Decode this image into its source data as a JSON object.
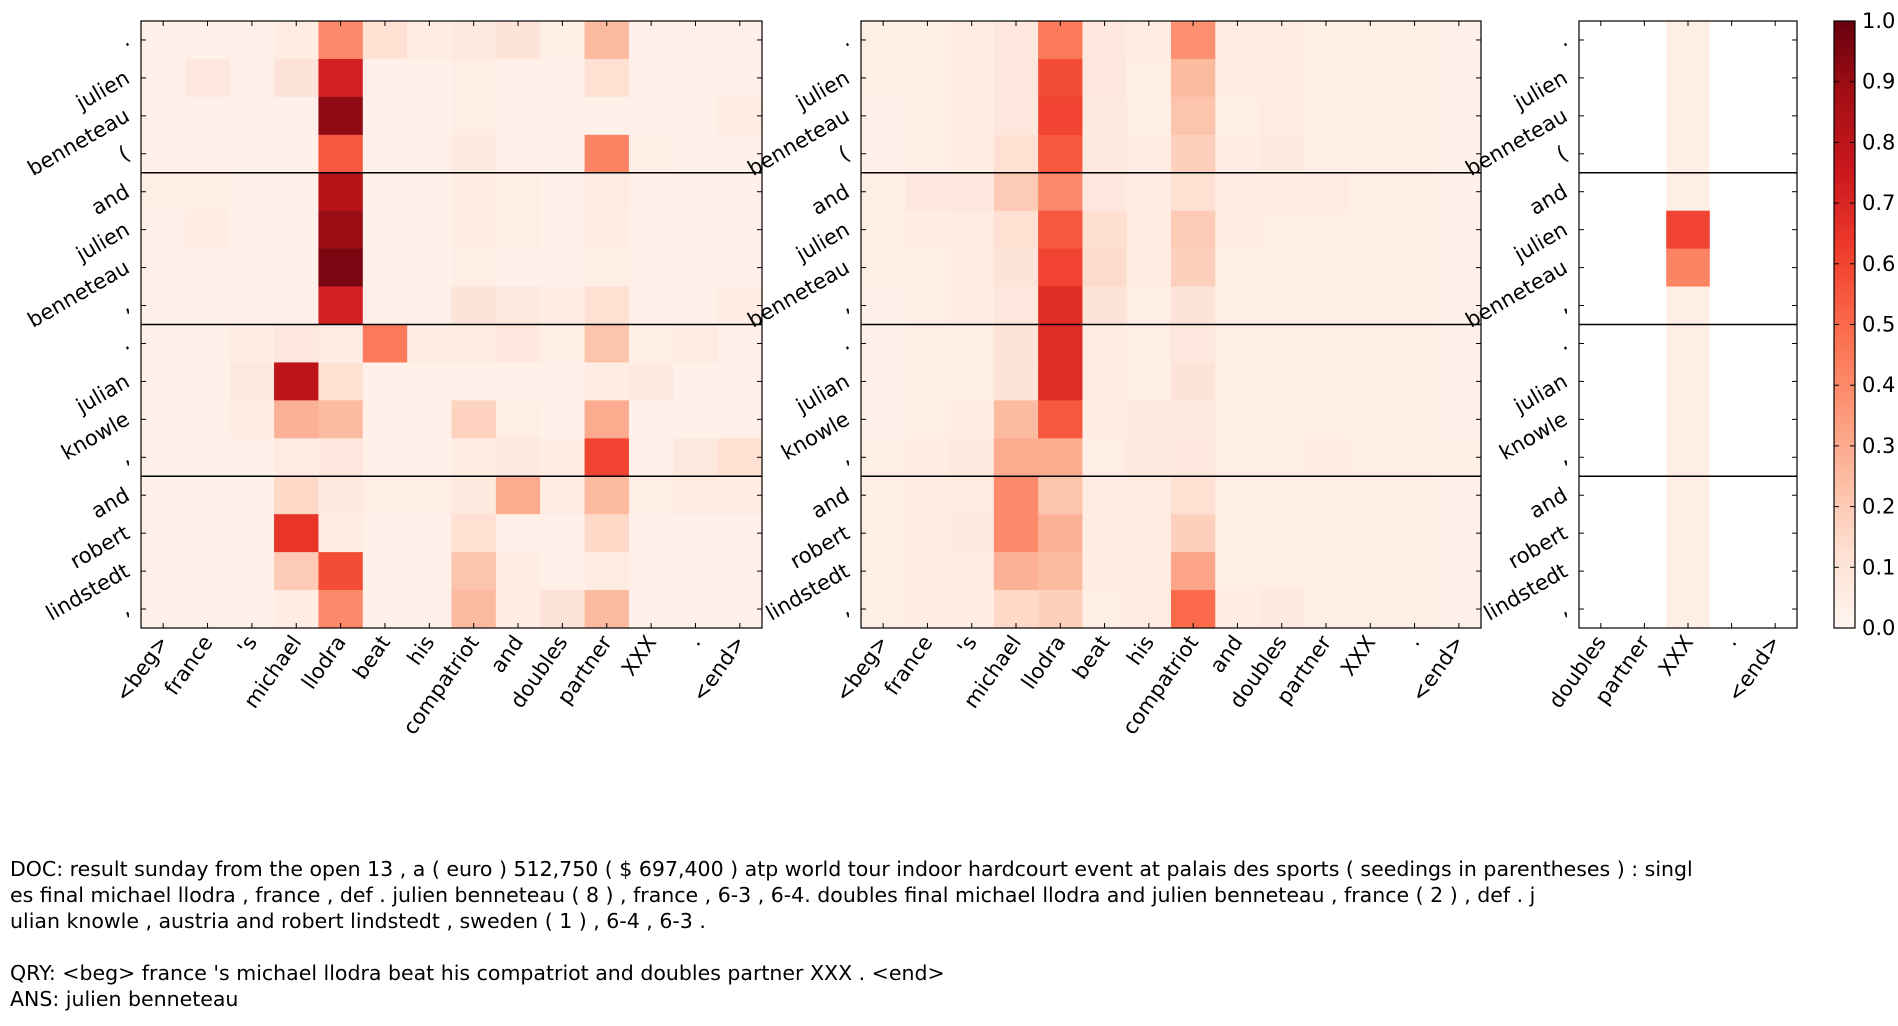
{
  "chart_data": {
    "type": "heatmap",
    "colormap": "Reds",
    "color_range": [
      0.0,
      1.0
    ],
    "colorbar": {
      "ticks": [
        0.0,
        0.1,
        0.2,
        0.3,
        0.4,
        0.5,
        0.6,
        0.7,
        0.8,
        0.9,
        1.0
      ],
      "tick_labels": [
        "0.0",
        "0.1",
        "0.2",
        "0.3",
        "0.4",
        "0.5",
        "0.6",
        "0.7",
        "0.8",
        "0.9",
        "1.0"
      ]
    },
    "row_labels": [
      ".",
      "julien",
      "benneteau",
      "(",
      "and",
      "julien",
      "benneteau",
      ",",
      ".",
      "julian",
      "knowle",
      ",",
      "and",
      "robert",
      "lindstedt",
      ","
    ],
    "row_groups": [
      4,
      8,
      12
    ],
    "panels": [
      {
        "name": "panel-1",
        "col_labels": [
          "<beg>",
          "france",
          "'s",
          "michael",
          "llodra",
          "beat",
          "his",
          "compatriot",
          "and",
          "doubles",
          "partner",
          "XXX",
          ".",
          "<end>"
        ],
        "values": [
          [
            0.03,
            0.03,
            0.03,
            0.05,
            0.4,
            0.12,
            0.05,
            0.07,
            0.1,
            0.04,
            0.25,
            0.03,
            0.03,
            0.03
          ],
          [
            0.03,
            0.08,
            0.03,
            0.1,
            0.72,
            0.03,
            0.03,
            0.04,
            0.03,
            0.03,
            0.12,
            0.03,
            0.03,
            0.03
          ],
          [
            0.03,
            0.03,
            0.03,
            0.03,
            0.92,
            0.03,
            0.03,
            0.04,
            0.03,
            0.03,
            0.03,
            0.03,
            0.03,
            0.05
          ],
          [
            0.03,
            0.03,
            0.03,
            0.03,
            0.55,
            0.03,
            0.03,
            0.07,
            0.03,
            0.03,
            0.42,
            0.04,
            0.03,
            0.03
          ],
          [
            0.04,
            0.04,
            0.03,
            0.03,
            0.82,
            0.03,
            0.03,
            0.05,
            0.04,
            0.03,
            0.06,
            0.03,
            0.03,
            0.03
          ],
          [
            0.03,
            0.05,
            0.03,
            0.03,
            0.9,
            0.03,
            0.03,
            0.05,
            0.04,
            0.03,
            0.05,
            0.03,
            0.03,
            0.03
          ],
          [
            0.03,
            0.03,
            0.03,
            0.03,
            0.96,
            0.03,
            0.03,
            0.04,
            0.03,
            0.03,
            0.04,
            0.03,
            0.03,
            0.03
          ],
          [
            0.03,
            0.03,
            0.03,
            0.03,
            0.72,
            0.03,
            0.03,
            0.1,
            0.07,
            0.05,
            0.12,
            0.03,
            0.03,
            0.05
          ],
          [
            0.03,
            0.03,
            0.05,
            0.08,
            0.06,
            0.45,
            0.06,
            0.06,
            0.08,
            0.04,
            0.22,
            0.04,
            0.06,
            0.03
          ],
          [
            0.03,
            0.03,
            0.07,
            0.8,
            0.12,
            0.03,
            0.03,
            0.03,
            0.03,
            0.03,
            0.05,
            0.07,
            0.03,
            0.03
          ],
          [
            0.03,
            0.03,
            0.05,
            0.28,
            0.25,
            0.03,
            0.03,
            0.17,
            0.04,
            0.03,
            0.3,
            0.03,
            0.03,
            0.03
          ],
          [
            0.03,
            0.03,
            0.03,
            0.06,
            0.08,
            0.03,
            0.03,
            0.05,
            0.07,
            0.05,
            0.6,
            0.03,
            0.07,
            0.12
          ],
          [
            0.03,
            0.03,
            0.03,
            0.15,
            0.07,
            0.04,
            0.04,
            0.07,
            0.3,
            0.05,
            0.25,
            0.04,
            0.06,
            0.05
          ],
          [
            0.03,
            0.03,
            0.03,
            0.65,
            0.06,
            0.03,
            0.03,
            0.12,
            0.03,
            0.03,
            0.15,
            0.03,
            0.03,
            0.03
          ],
          [
            0.03,
            0.03,
            0.03,
            0.2,
            0.58,
            0.03,
            0.03,
            0.22,
            0.05,
            0.03,
            0.06,
            0.03,
            0.03,
            0.03
          ],
          [
            0.03,
            0.03,
            0.03,
            0.05,
            0.4,
            0.03,
            0.03,
            0.25,
            0.05,
            0.1,
            0.25,
            0.03,
            0.03,
            0.03
          ]
        ]
      },
      {
        "name": "panel-2",
        "col_labels": [
          "<beg>",
          "france",
          "'s",
          "michael",
          "llodra",
          "beat",
          "his",
          "compatriot",
          "and",
          "doubles",
          "partner",
          "XXX",
          ".",
          "<end>"
        ],
        "values": [
          [
            0.04,
            0.04,
            0.05,
            0.08,
            0.45,
            0.08,
            0.05,
            0.38,
            0.05,
            0.05,
            0.04,
            0.04,
            0.04,
            0.03
          ],
          [
            0.04,
            0.04,
            0.05,
            0.08,
            0.58,
            0.08,
            0.04,
            0.25,
            0.05,
            0.06,
            0.04,
            0.04,
            0.04,
            0.03
          ],
          [
            0.03,
            0.04,
            0.05,
            0.08,
            0.6,
            0.07,
            0.04,
            0.22,
            0.04,
            0.06,
            0.04,
            0.04,
            0.04,
            0.03
          ],
          [
            0.03,
            0.04,
            0.05,
            0.12,
            0.55,
            0.07,
            0.05,
            0.18,
            0.05,
            0.07,
            0.04,
            0.04,
            0.04,
            0.03
          ],
          [
            0.04,
            0.08,
            0.08,
            0.2,
            0.4,
            0.08,
            0.05,
            0.12,
            0.05,
            0.05,
            0.06,
            0.04,
            0.04,
            0.03
          ],
          [
            0.04,
            0.05,
            0.06,
            0.12,
            0.55,
            0.13,
            0.06,
            0.2,
            0.05,
            0.04,
            0.04,
            0.04,
            0.04,
            0.03
          ],
          [
            0.04,
            0.04,
            0.05,
            0.1,
            0.6,
            0.14,
            0.05,
            0.18,
            0.04,
            0.04,
            0.04,
            0.04,
            0.04,
            0.03
          ],
          [
            0.03,
            0.04,
            0.05,
            0.08,
            0.68,
            0.1,
            0.04,
            0.1,
            0.04,
            0.04,
            0.04,
            0.04,
            0.04,
            0.03
          ],
          [
            0.03,
            0.04,
            0.04,
            0.1,
            0.68,
            0.06,
            0.04,
            0.08,
            0.04,
            0.04,
            0.04,
            0.04,
            0.04,
            0.03
          ],
          [
            0.03,
            0.04,
            0.04,
            0.1,
            0.68,
            0.06,
            0.04,
            0.1,
            0.04,
            0.04,
            0.04,
            0.04,
            0.04,
            0.03
          ],
          [
            0.03,
            0.04,
            0.05,
            0.25,
            0.55,
            0.05,
            0.07,
            0.07,
            0.04,
            0.04,
            0.04,
            0.04,
            0.04,
            0.03
          ],
          [
            0.04,
            0.05,
            0.07,
            0.3,
            0.3,
            0.04,
            0.07,
            0.08,
            0.04,
            0.04,
            0.05,
            0.04,
            0.04,
            0.04
          ],
          [
            0.04,
            0.05,
            0.06,
            0.4,
            0.22,
            0.05,
            0.06,
            0.12,
            0.04,
            0.04,
            0.04,
            0.04,
            0.04,
            0.03
          ],
          [
            0.04,
            0.06,
            0.07,
            0.4,
            0.28,
            0.05,
            0.06,
            0.18,
            0.04,
            0.04,
            0.04,
            0.04,
            0.04,
            0.03
          ],
          [
            0.04,
            0.06,
            0.06,
            0.28,
            0.25,
            0.05,
            0.06,
            0.32,
            0.04,
            0.04,
            0.04,
            0.04,
            0.04,
            0.03
          ],
          [
            0.04,
            0.05,
            0.05,
            0.15,
            0.18,
            0.04,
            0.06,
            0.5,
            0.05,
            0.07,
            0.04,
            0.04,
            0.04,
            0.03
          ]
        ]
      },
      {
        "name": "panel-3",
        "col_labels": [
          "doubles",
          "partner",
          "XXX",
          ".",
          "<end>"
        ],
        "values": [
          [
            0.0,
            0.0,
            0.04,
            0.0,
            0.0
          ],
          [
            0.0,
            0.0,
            0.04,
            0.0,
            0.0
          ],
          [
            0.0,
            0.0,
            0.04,
            0.0,
            0.0
          ],
          [
            0.0,
            0.0,
            0.04,
            0.0,
            0.0
          ],
          [
            0.0,
            0.0,
            0.04,
            0.0,
            0.0
          ],
          [
            0.0,
            0.0,
            0.6,
            0.0,
            0.0
          ],
          [
            0.0,
            0.0,
            0.42,
            0.0,
            0.0
          ],
          [
            0.0,
            0.0,
            0.04,
            0.0,
            0.0
          ],
          [
            0.0,
            0.0,
            0.04,
            0.0,
            0.0
          ],
          [
            0.0,
            0.0,
            0.04,
            0.0,
            0.0
          ],
          [
            0.0,
            0.0,
            0.04,
            0.0,
            0.0
          ],
          [
            0.0,
            0.0,
            0.04,
            0.0,
            0.0
          ],
          [
            0.0,
            0.0,
            0.04,
            0.0,
            0.0
          ],
          [
            0.0,
            0.0,
            0.04,
            0.0,
            0.0
          ],
          [
            0.0,
            0.0,
            0.04,
            0.0,
            0.0
          ],
          [
            0.0,
            0.0,
            0.04,
            0.0,
            0.0
          ]
        ]
      }
    ]
  },
  "caption": {
    "doc_lines": [
      "DOC: result sunday from the open 13 , a ( euro ) 512,750 ( $ 697,400 ) atp world tour indoor hardcourt event at palais des sports ( seedings in parentheses ) : singl",
      "es final michael llodra , france , def . julien benneteau ( 8 ) , france , 6-3 , 6-4. doubles final michael llodra and julien benneteau , france ( 2 ) , def . j",
      "ulian knowle , austria and robert lindstedt , sweden ( 1 ) , 6-4 , 6-3 ."
    ],
    "qry": "QRY: <beg> france 's michael llodra beat his compatriot and doubles partner XXX . <end>",
    "ans": "ANS: julien benneteau"
  }
}
